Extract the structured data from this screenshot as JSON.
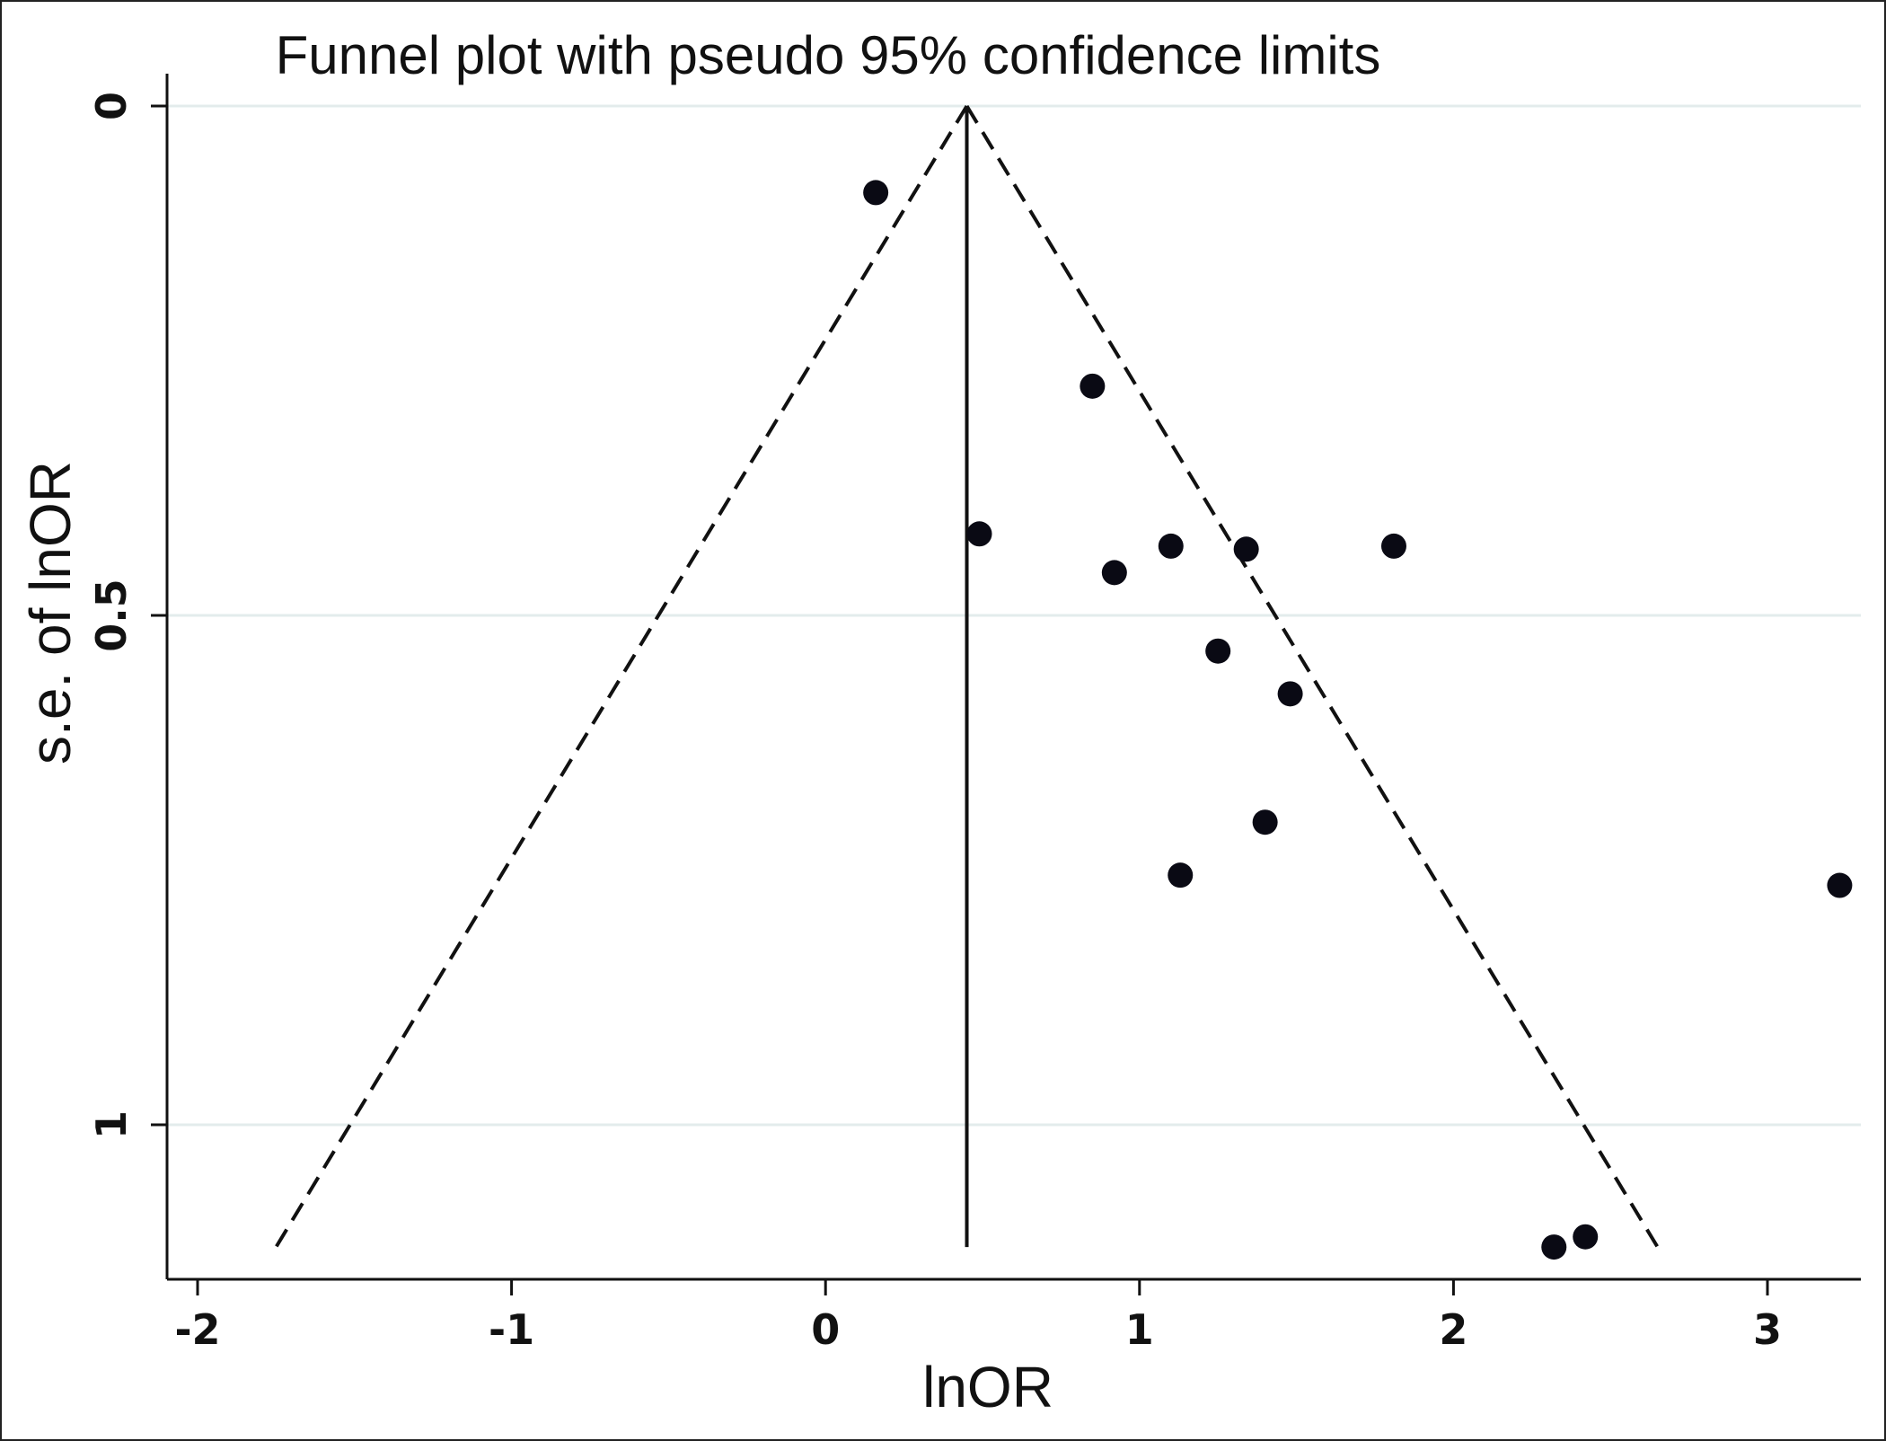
{
  "chart_data": {
    "type": "scatter",
    "title": "Funnel plot with pseudo 95% confidence limits",
    "xlabel": "lnOR",
    "ylabel": "s.e. of lnOR",
    "xlim": [
      -2.1,
      3.3
    ],
    "ylim": [
      1.155,
      0
    ],
    "y_inverted": true,
    "x_ticks": [
      -2,
      -1,
      0,
      1,
      2,
      3
    ],
    "y_ticks": [
      0,
      0.5,
      1
    ],
    "grid": true,
    "pooled_estimate": 0.45,
    "confidence_limit_lines": [
      {
        "name": "lower 95% limit",
        "points": [
          [
            0.45,
            0
          ],
          [
            -1.75,
            1.12
          ]
        ]
      },
      {
        "name": "upper 95% limit",
        "points": [
          [
            0.45,
            0
          ],
          [
            2.65,
            1.12
          ]
        ]
      }
    ],
    "points": [
      {
        "x": 0.16,
        "y": 0.085
      },
      {
        "x": 0.85,
        "y": 0.275
      },
      {
        "x": 0.49,
        "y": 0.42
      },
      {
        "x": 1.1,
        "y": 0.432
      },
      {
        "x": 1.34,
        "y": 0.435
      },
      {
        "x": 1.81,
        "y": 0.432
      },
      {
        "x": 0.92,
        "y": 0.458
      },
      {
        "x": 1.25,
        "y": 0.535
      },
      {
        "x": 1.48,
        "y": 0.577
      },
      {
        "x": 1.4,
        "y": 0.703
      },
      {
        "x": 1.13,
        "y": 0.755
      },
      {
        "x": 3.23,
        "y": 0.765
      },
      {
        "x": 2.32,
        "y": 1.12
      },
      {
        "x": 2.42,
        "y": 1.11
      }
    ]
  }
}
